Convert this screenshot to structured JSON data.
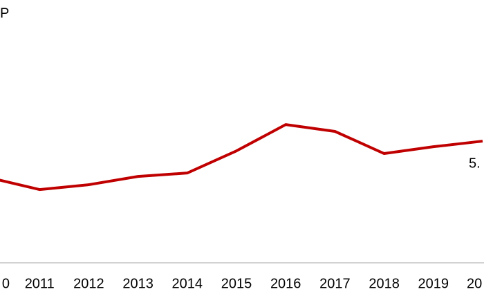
{
  "chart_data": {
    "type": "line",
    "title": "P",
    "categories": [
      "0",
      "2011",
      "2012",
      "2013",
      "2014",
      "2015",
      "2016",
      "2017",
      "2018",
      "2019",
      "20"
    ],
    "series": [
      {
        "color": "#c00000",
        "values": [
          3.49,
          3.01,
          3.21,
          3.55,
          3.69,
          4.6,
          5.68,
          5.4,
          4.49,
          4.77,
          5.0
        ],
        "value_labels": [
          null,
          null,
          null,
          null,
          null,
          null,
          null,
          null,
          null,
          null,
          "5."
        ]
      }
    ],
    "ylim": [
      0,
      10.8
    ]
  }
}
